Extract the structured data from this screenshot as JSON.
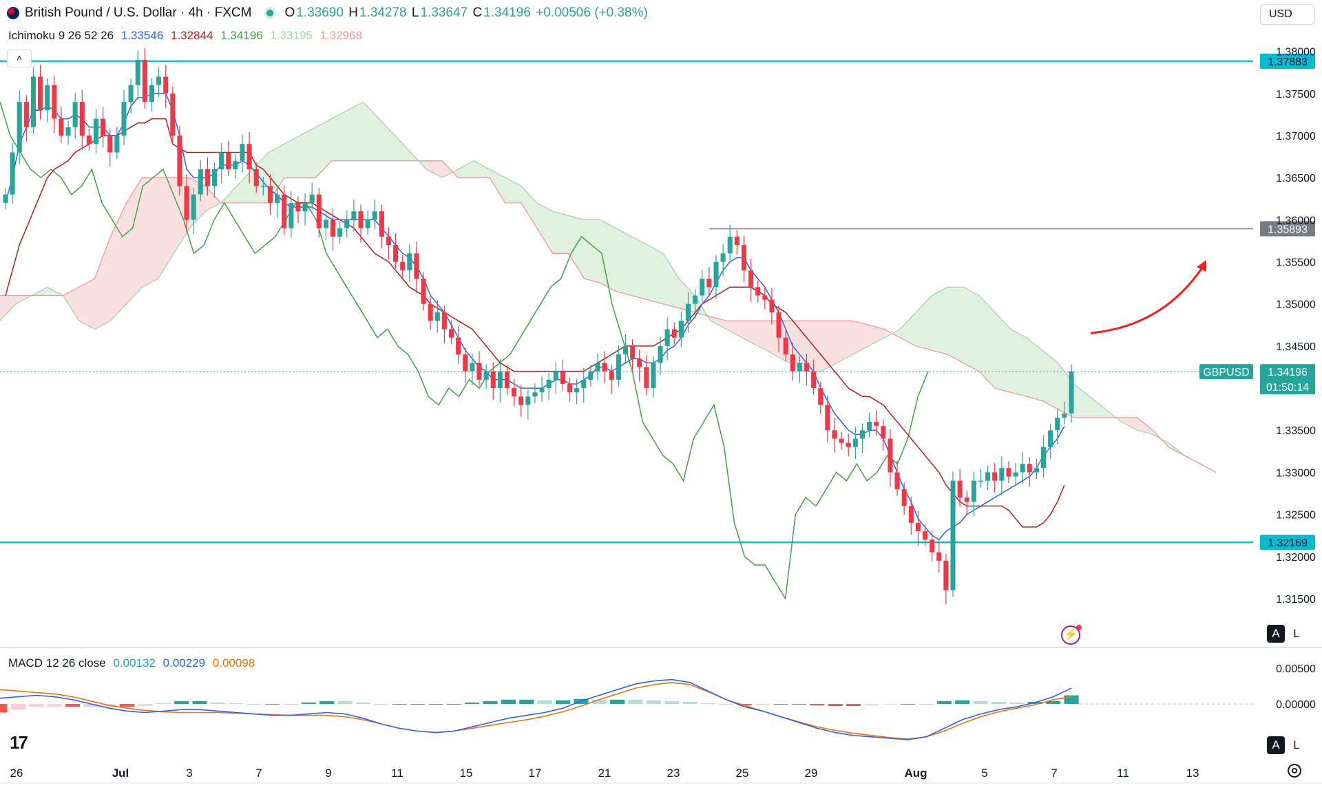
{
  "header": {
    "symbol_title": "British Pound / U.S. Dollar · 4h · FXCM",
    "open_label": "O",
    "open": "1.33690",
    "high_label": "H",
    "high": "1.34278",
    "low_label": "L",
    "low": "1.33647",
    "close_label": "C",
    "close": "1.34196",
    "change": "+0.00506 (+0.38%)"
  },
  "currency_button": "USD",
  "ichimoku": {
    "name": "Ichimoku 9 26 52 26",
    "conversion": "1.33546",
    "base": "1.32844",
    "lagging": "1.34196",
    "lead1": "1.33195",
    "lead2": "1.32968"
  },
  "macd": {
    "name": "MACD 12 26 close",
    "histogram": "0.00132",
    "macd": "0.00229",
    "signal": "0.00098"
  },
  "colors": {
    "up": "#26a69a",
    "down": "#f23645",
    "conversion": "#2962ff",
    "base": "#b71c1c",
    "lagging": "#43a047",
    "lead1": "#a5d6a7",
    "lead2": "#ef9a9a",
    "macd_line": "#2962ff",
    "signal_line": "#ff6d00",
    "level_line": "#00bcd4",
    "arrow": "#ff1a1a"
  },
  "icons": [
    "gbp-usd-flag-icon",
    "chevron-up-icon",
    "tradingview-logo-icon",
    "settings-icon",
    "lightning-icon"
  ],
  "chart_data": {
    "type": "candlestick",
    "symbol": "GBPUSD",
    "timeframe": "4h",
    "price_axis_ticks": [
      "1.38000",
      "1.37500",
      "1.37000",
      "1.36500",
      "1.36000",
      "1.35500",
      "1.35000",
      "1.34500",
      "1.33500",
      "1.33000",
      "1.32500",
      "1.32000",
      "1.31500"
    ],
    "ylim": [
      1.3105,
      1.3812
    ],
    "time_axis_labels": [
      "26",
      "Jul",
      "3",
      "7",
      "9",
      "11",
      "15",
      "17",
      "21",
      "23",
      "25",
      "29",
      "Aug",
      "5",
      "7",
      "11",
      "13"
    ],
    "horizontal_levels": [
      {
        "price": 1.37883,
        "label": "1.37883",
        "style": "resistance"
      },
      {
        "price": 1.35893,
        "label": "1.35893",
        "style": "recent-high"
      },
      {
        "price": 1.32169,
        "label": "1.32169",
        "style": "support"
      }
    ],
    "last_price": {
      "symbol": "GBPUSD",
      "price": "1.34196",
      "countdown": "01:50:14"
    },
    "closes": [
      1.363,
      1.368,
      1.374,
      1.371,
      1.377,
      1.373,
      1.376,
      1.372,
      1.37,
      1.371,
      1.374,
      1.37,
      1.369,
      1.372,
      1.37,
      1.368,
      1.37,
      1.374,
      1.376,
      1.379,
      1.374,
      1.376,
      1.377,
      1.375,
      1.37,
      1.364,
      1.36,
      1.363,
      1.366,
      1.364,
      1.366,
      1.368,
      1.366,
      1.367,
      1.369,
      1.366,
      1.364,
      1.364,
      1.362,
      1.363,
      1.359,
      1.362,
      1.361,
      1.362,
      1.363,
      1.359,
      1.36,
      1.358,
      1.359,
      1.36,
      1.361,
      1.359,
      1.36,
      1.361,
      1.358,
      1.357,
      1.355,
      1.354,
      1.356,
      1.353,
      1.35,
      1.348,
      1.349,
      1.347,
      1.346,
      1.344,
      1.342,
      1.343,
      1.341,
      1.342,
      1.34,
      1.342,
      1.34,
      1.339,
      1.338,
      1.339,
      1.3395,
      1.34,
      1.341,
      1.342,
      1.3405,
      1.3395,
      1.34,
      1.341,
      1.342,
      1.343,
      1.342,
      1.341,
      1.344,
      1.345,
      1.3435,
      1.3425,
      1.34,
      1.343,
      1.345,
      1.347,
      1.346,
      1.348,
      1.35,
      1.351,
      1.353,
      1.352,
      1.355,
      1.356,
      1.358,
      1.357,
      1.354,
      1.352,
      1.351,
      1.3505,
      1.349,
      1.346,
      1.344,
      1.342,
      1.343,
      1.342,
      1.34,
      1.338,
      1.335,
      1.334,
      1.3335,
      1.333,
      1.334,
      1.335,
      1.336,
      1.3355,
      1.334,
      1.33,
      1.328,
      1.326,
      1.324,
      1.323,
      1.322,
      1.3205,
      1.3195,
      1.316,
      1.329,
      1.327,
      1.3265,
      1.329,
      1.329,
      1.33,
      1.329,
      1.3305,
      1.3295,
      1.33,
      1.331,
      1.33,
      1.3305,
      1.333,
      1.335,
      1.3365,
      1.337,
      1.342
    ],
    "conversion_line": [
      1.362,
      1.365,
      1.369,
      1.371,
      1.373,
      1.373,
      1.3735,
      1.373,
      1.372,
      1.372,
      1.3725,
      1.372,
      1.371,
      1.371,
      1.371,
      1.37,
      1.37,
      1.3715,
      1.3735,
      1.3745,
      1.3745,
      1.375,
      1.375,
      1.375,
      1.373,
      1.37,
      1.366,
      1.365,
      1.365,
      1.365,
      1.3655,
      1.3665,
      1.3665,
      1.3665,
      1.367,
      1.3665,
      1.3655,
      1.3645,
      1.3635,
      1.363,
      1.362,
      1.3615,
      1.3615,
      1.3615,
      1.3615,
      1.361,
      1.3605,
      1.36,
      1.36,
      1.36,
      1.36,
      1.36,
      1.36,
      1.36,
      1.359,
      1.358,
      1.357,
      1.356,
      1.3555,
      1.3545,
      1.353,
      1.351,
      1.35,
      1.349,
      1.3475,
      1.346,
      1.3445,
      1.3435,
      1.3425,
      1.342,
      1.341,
      1.341,
      1.341,
      1.3405,
      1.34,
      1.34,
      1.34,
      1.34,
      1.3405,
      1.341,
      1.341,
      1.3405,
      1.3405,
      1.341,
      1.3415,
      1.3425,
      1.3425,
      1.342,
      1.3425,
      1.343,
      1.3435,
      1.3435,
      1.343,
      1.343,
      1.3435,
      1.3445,
      1.345,
      1.346,
      1.3475,
      1.3485,
      1.35,
      1.351,
      1.3525,
      1.354,
      1.355,
      1.3555,
      1.3555,
      1.354,
      1.353,
      1.352,
      1.3505,
      1.349,
      1.347,
      1.345,
      1.344,
      1.343,
      1.342,
      1.34,
      1.3385,
      1.337,
      1.336,
      1.335,
      1.3345,
      1.3345,
      1.335,
      1.335,
      1.334,
      1.332,
      1.33,
      1.328,
      1.3265,
      1.3245,
      1.3235,
      1.3225,
      1.322,
      1.323,
      1.3235,
      1.324,
      1.325,
      1.3255,
      1.326,
      1.3265,
      1.327,
      1.3275,
      1.328,
      1.3285,
      1.329,
      1.3295,
      1.3305,
      1.332,
      1.333,
      1.334,
      1.3355
    ],
    "base_line": [
      1.351,
      1.354,
      1.357,
      1.359,
      1.361,
      1.363,
      1.365,
      1.366,
      1.3665,
      1.367,
      1.368,
      1.3685,
      1.369,
      1.3695,
      1.37,
      1.37,
      1.37,
      1.3705,
      1.371,
      1.3715,
      1.3715,
      1.372,
      1.372,
      1.372,
      1.369,
      1.3685,
      1.368,
      1.368,
      1.368,
      1.368,
      1.368,
      1.368,
      1.368,
      1.368,
      1.368,
      1.368,
      1.3665,
      1.366,
      1.365,
      1.364,
      1.363,
      1.3625,
      1.362,
      1.362,
      1.362,
      1.3615,
      1.361,
      1.3605,
      1.36,
      1.3595,
      1.359,
      1.358,
      1.357,
      1.356,
      1.3555,
      1.355,
      1.354,
      1.353,
      1.352,
      1.3515,
      1.351,
      1.35,
      1.3495,
      1.349,
      1.3485,
      1.348,
      1.3475,
      1.347,
      1.346,
      1.345,
      1.344,
      1.343,
      1.3425,
      1.342,
      1.342,
      1.342,
      1.342,
      1.342,
      1.342,
      1.342,
      1.342,
      1.342,
      1.342,
      1.342,
      1.3425,
      1.343,
      1.3435,
      1.344,
      1.3445,
      1.345,
      1.345,
      1.345,
      1.345,
      1.345,
      1.3455,
      1.346,
      1.3465,
      1.347,
      1.348,
      1.349,
      1.35,
      1.3505,
      1.351,
      1.3515,
      1.352,
      1.352,
      1.352,
      1.352,
      1.3515,
      1.351,
      1.35,
      1.3495,
      1.349,
      1.348,
      1.347,
      1.346,
      1.345,
      1.344,
      1.343,
      1.342,
      1.341,
      1.34,
      1.3395,
      1.339,
      1.339,
      1.3385,
      1.338,
      1.337,
      1.336,
      1.335,
      1.334,
      1.333,
      1.332,
      1.331,
      1.33,
      1.3285,
      1.3275,
      1.3265,
      1.326,
      1.326,
      1.326,
      1.326,
      1.326,
      1.326,
      1.3255,
      1.3245,
      1.3235,
      1.3235,
      1.3235,
      1.324,
      1.325,
      1.3265,
      1.3285
    ],
    "lagging_span": [
      1.374,
      1.37,
      1.368,
      1.366,
      1.365,
      1.366,
      1.365,
      1.363,
      1.364,
      1.366,
      1.362,
      1.36,
      1.358,
      1.359,
      1.364,
      1.365,
      1.366,
      1.363,
      1.36,
      1.356,
      1.357,
      1.36,
      1.362,
      1.36,
      1.358,
      1.356,
      1.357,
      1.358,
      1.36,
      1.362,
      1.362,
      1.36,
      1.356,
      1.354,
      1.352,
      1.35,
      1.348,
      1.346,
      1.347,
      1.345,
      1.344,
      1.342,
      1.339,
      1.338,
      1.34,
      1.339,
      1.341,
      1.34,
      1.342,
      1.343,
      1.344,
      1.346,
      1.348,
      1.35,
      1.352,
      1.353,
      1.356,
      1.358,
      1.357,
      1.356,
      1.35,
      1.346,
      1.342,
      1.336,
      1.334,
      1.332,
      1.331,
      1.329,
      1.334,
      1.336,
      1.338,
      1.333,
      1.324,
      1.32,
      1.319,
      1.319,
      1.317,
      1.315,
      1.325,
      1.327,
      1.326,
      1.328,
      1.33,
      1.329,
      1.331,
      1.329,
      1.33,
      1.332,
      1.331,
      1.334,
      1.339,
      1.342
    ],
    "cloud_lead1": [
      1.348,
      1.35,
      1.351,
      1.352,
      1.351,
      1.348,
      1.347,
      1.348,
      1.35,
      1.352,
      1.353,
      1.356,
      1.359,
      1.361,
      1.362,
      1.364,
      1.366,
      1.368,
      1.369,
      1.37,
      1.371,
      1.372,
      1.373,
      1.374,
      1.372,
      1.37,
      1.368,
      1.366,
      1.365,
      1.366,
      1.367,
      1.366,
      1.365,
      1.364,
      1.362,
      1.361,
      1.3605,
      1.36,
      1.36,
      1.359,
      1.358,
      1.357,
      1.356,
      1.353,
      1.351,
      1.348,
      1.347,
      1.346,
      1.345,
      1.344,
      1.343,
      1.342,
      1.342,
      1.343,
      1.344,
      1.345,
      1.346,
      1.347,
      1.349,
      1.351,
      1.352,
      1.352,
      1.351,
      1.349,
      1.347,
      1.346,
      1.3445,
      1.343,
      1.3405,
      1.339,
      1.3375,
      1.336,
      1.335,
      1.3345,
      1.3335,
      1.332,
      1.331,
      1.33
    ],
    "cloud_lead2": [
      1.351,
      1.351,
      1.351,
      1.351,
      1.351,
      1.352,
      1.353,
      1.358,
      1.362,
      1.365,
      1.365,
      1.365,
      1.365,
      1.364,
      1.362,
      1.362,
      1.362,
      1.362,
      1.365,
      1.365,
      1.365,
      1.367,
      1.367,
      1.367,
      1.367,
      1.367,
      1.367,
      1.367,
      1.367,
      1.365,
      1.365,
      1.365,
      1.362,
      1.362,
      1.359,
      1.356,
      1.356,
      1.353,
      1.3525,
      1.3515,
      1.351,
      1.3505,
      1.35,
      1.3495,
      1.349,
      1.3485,
      1.348,
      1.348,
      1.348,
      1.348,
      1.348,
      1.348,
      1.348,
      1.348,
      1.348,
      1.3475,
      1.347,
      1.346,
      1.345,
      1.3445,
      1.344,
      1.343,
      1.342,
      1.34,
      1.3395,
      1.339,
      1.3385,
      1.3375,
      1.3365,
      1.3365,
      1.3365,
      1.3365,
      1.3365,
      1.335,
      1.333,
      1.332,
      1.331,
      1.33
    ],
    "macd_axis_ticks": [
      "0.00500",
      "0.00000"
    ],
    "macd_line": [
      0.0008,
      0.001,
      0.0012,
      0.001,
      0.0006,
      0.0,
      -0.0006,
      -0.001,
      -0.0012,
      -0.001,
      -0.0008,
      -0.0008,
      -0.001,
      -0.0012,
      -0.0014,
      -0.0016,
      -0.0016,
      -0.0014,
      -0.0012,
      -0.0014,
      -0.002,
      -0.0028,
      -0.0034,
      -0.0038,
      -0.004,
      -0.0038,
      -0.0032,
      -0.0026,
      -0.002,
      -0.0016,
      -0.0012,
      -0.0006,
      0.0004,
      0.0012,
      0.002,
      0.0028,
      0.0032,
      0.0034,
      0.003,
      0.0018,
      0.0006,
      -0.0004,
      -0.001,
      -0.0018,
      -0.0026,
      -0.0034,
      -0.004,
      -0.0044,
      -0.0046,
      -0.0048,
      -0.005,
      -0.0046,
      -0.0034,
      -0.0022,
      -0.0014,
      -0.0008,
      -0.0004,
      0.0002,
      0.001,
      0.0022
    ],
    "signal_line": [
      0.002,
      0.0018,
      0.0016,
      0.0014,
      0.001,
      0.0004,
      -0.0002,
      -0.0006,
      -0.0009,
      -0.0011,
      -0.0012,
      -0.0012,
      -0.0012,
      -0.0013,
      -0.0014,
      -0.0015,
      -0.0016,
      -0.0016,
      -0.0016,
      -0.0018,
      -0.0022,
      -0.0028,
      -0.0034,
      -0.0038,
      -0.004,
      -0.0038,
      -0.0034,
      -0.003,
      -0.0026,
      -0.0022,
      -0.0017,
      -0.0011,
      -0.0003,
      0.0006,
      0.0014,
      0.0022,
      0.0027,
      0.003,
      0.0027,
      0.0017,
      0.0006,
      -0.0002,
      -0.001,
      -0.0018,
      -0.0025,
      -0.0032,
      -0.0037,
      -0.0041,
      -0.0044,
      -0.0047,
      -0.0049,
      -0.0046,
      -0.0038,
      -0.0027,
      -0.0018,
      -0.0011,
      -0.0006,
      -0.0001,
      0.0006,
      0.001
    ]
  }
}
